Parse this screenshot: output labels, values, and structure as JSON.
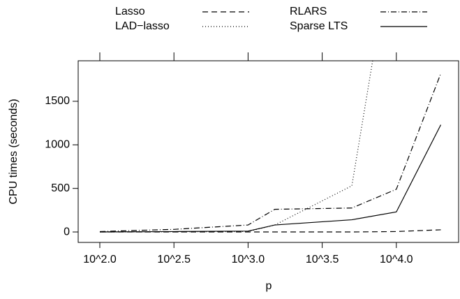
{
  "chart_data": {
    "type": "line",
    "xlabel": "p",
    "ylabel": "CPU times (seconds)",
    "x": [
      2.0,
      2.5,
      3.0,
      3.18,
      3.7,
      4.0,
      4.3
    ],
    "series": [
      {
        "name": "Lasso",
        "color": "#000000",
        "dash": "8,5",
        "values": [
          0,
          0,
          0,
          0,
          0,
          5,
          25
        ]
      },
      {
        "name": "LAD−lasso",
        "color": "#000000",
        "dash": "1,3",
        "values": [
          0,
          2,
          5,
          80,
          530,
          3600,
          null
        ]
      },
      {
        "name": "RLARS",
        "color": "#000000",
        "dash": "8,3,1,3",
        "values": [
          5,
          30,
          80,
          260,
          275,
          490,
          1820
        ]
      },
      {
        "name": "Sparse LTS",
        "color": "#000000",
        "dash": "none",
        "values": [
          0,
          5,
          10,
          80,
          140,
          230,
          1230
        ]
      }
    ],
    "xlim": [
      1.854,
      4.42
    ],
    "xticks": [
      {
        "value": 2.0,
        "label": "10^2.0"
      },
      {
        "value": 2.5,
        "label": "10^2.5"
      },
      {
        "value": 3.0,
        "label": "10^3.0"
      },
      {
        "value": 3.5,
        "label": "10^3.5"
      },
      {
        "value": 4.0,
        "label": "10^4.0"
      }
    ],
    "ylim": [
      -120,
      1965
    ],
    "yticks": [
      0,
      500,
      1000,
      1500
    ],
    "legend": "top"
  }
}
